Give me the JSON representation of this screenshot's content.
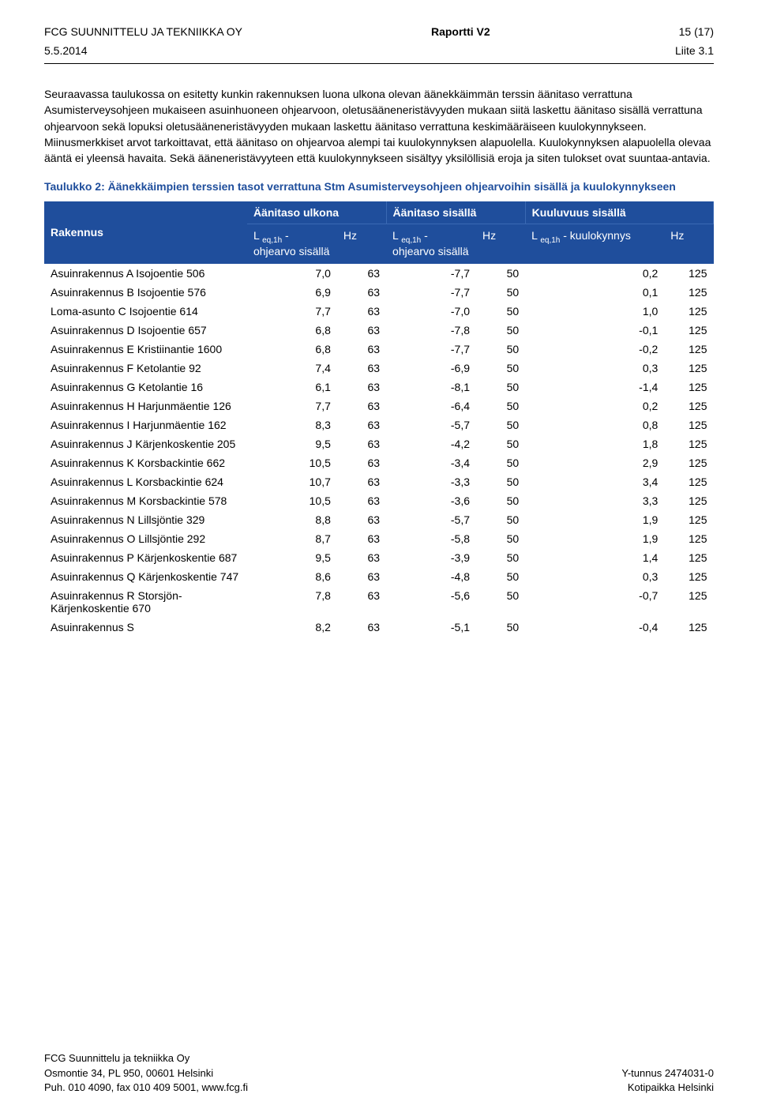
{
  "header": {
    "company": "FCG SUUNNITTELU JA TEKNIIKKA OY",
    "title": "Raportti V2",
    "page": "15 (17)",
    "date": "5.5.2014",
    "attachment": "Liite 3.1"
  },
  "body": {
    "para1": "Seuraavassa taulukossa on esitetty kunkin rakennuksen luona ulkona olevan äänekkäimmän terssin äänitaso verrattuna Asumisterveysohjeen mukaiseen asuinhuoneen ohjearvoon, oletusääneneristävyyden mukaan siitä laskettu äänitaso sisällä verrattuna ohjearvoon sekä lopuksi oletusääneneristävyyden mukaan laskettu äänitaso verrattuna keskimääräiseen kuulokynnykseen. Miinusmerkkiset arvot tarkoittavat, että äänitaso on ohjearvoa alempi tai kuulokynnyksen alapuolella. Kuulokynnyksen alapuolella olevaa ääntä ei yleensä havaita. Sekä ääneneristävyyteen että kuulokynnykseen sisältyy yksilöllisiä eroja ja siten tulokset ovat suuntaa-antavia.",
    "caption": "Taulukko 2: Äänekkäimpien terssien tasot verrattuna Stm Asumisterveysohjeen ohjearvoihin sisällä ja kuulokynnykseen"
  },
  "table": {
    "col_rakennus": "Rakennus",
    "group_ulkona": "Äänitaso ulkona",
    "group_sisalla": "Äänitaso sisällä",
    "group_kuuluvuus": "Kuuluvuus sisällä",
    "sub_l1a": "L",
    "sub_eq": "eq,1h",
    "sub_l1b": " - ohjearvo sisällä",
    "sub_hz": "Hz",
    "sub_l3b": " - kuulokynnys",
    "rows": [
      {
        "name": "Asuinrakennus A Isojoentie 506",
        "u": "7,0",
        "uhz": "63",
        "s": "-7,7",
        "shz": "50",
        "k": "0,2",
        "khz": "125"
      },
      {
        "name": "Asuinrakennus B Isojoentie 576",
        "u": "6,9",
        "uhz": "63",
        "s": "-7,7",
        "shz": "50",
        "k": "0,1",
        "khz": "125"
      },
      {
        "name": "Loma-asunto C Isojoentie 614",
        "u": "7,7",
        "uhz": "63",
        "s": "-7,0",
        "shz": "50",
        "k": "1,0",
        "khz": "125"
      },
      {
        "name": "Asuinrakennus D Isojoentie 657",
        "u": "6,8",
        "uhz": "63",
        "s": "-7,8",
        "shz": "50",
        "k": "-0,1",
        "khz": "125"
      },
      {
        "name": "Asuinrakennus E Kristiinantie 1600",
        "u": "6,8",
        "uhz": "63",
        "s": "-7,7",
        "shz": "50",
        "k": "-0,2",
        "khz": "125"
      },
      {
        "name": "Asuinrakennus F Ketolantie 92",
        "u": "7,4",
        "uhz": "63",
        "s": "-6,9",
        "shz": "50",
        "k": "0,3",
        "khz": "125"
      },
      {
        "name": "Asuinrakennus G Ketolantie 16",
        "u": "6,1",
        "uhz": "63",
        "s": "-8,1",
        "shz": "50",
        "k": "-1,4",
        "khz": "125"
      },
      {
        "name": "Asuinrakennus H Harjunmäentie 126",
        "u": "7,7",
        "uhz": "63",
        "s": "-6,4",
        "shz": "50",
        "k": "0,2",
        "khz": "125"
      },
      {
        "name": "Asuinrakennus I Harjunmäentie 162",
        "u": "8,3",
        "uhz": "63",
        "s": "-5,7",
        "shz": "50",
        "k": "0,8",
        "khz": "125"
      },
      {
        "name": "Asuinrakennus J Kärjenkoskentie 205",
        "u": "9,5",
        "uhz": "63",
        "s": "-4,2",
        "shz": "50",
        "k": "1,8",
        "khz": "125"
      },
      {
        "name": "Asuinrakennus K Korsbackintie 662",
        "u": "10,5",
        "uhz": "63",
        "s": "-3,4",
        "shz": "50",
        "k": "2,9",
        "khz": "125"
      },
      {
        "name": "Asuinrakennus L Korsbackintie 624",
        "u": "10,7",
        "uhz": "63",
        "s": "-3,3",
        "shz": "50",
        "k": "3,4",
        "khz": "125"
      },
      {
        "name": "Asuinrakennus M Korsbackintie 578",
        "u": "10,5",
        "uhz": "63",
        "s": "-3,6",
        "shz": "50",
        "k": "3,3",
        "khz": "125"
      },
      {
        "name": "Asuinrakennus N Lillsjöntie 329",
        "u": "8,8",
        "uhz": "63",
        "s": "-5,7",
        "shz": "50",
        "k": "1,9",
        "khz": "125"
      },
      {
        "name": "Asuinrakennus O Lillsjöntie 292",
        "u": "8,7",
        "uhz": "63",
        "s": "-5,8",
        "shz": "50",
        "k": "1,9",
        "khz": "125"
      },
      {
        "name": "Asuinrakennus P Kärjenkoskentie 687",
        "u": "9,5",
        "uhz": "63",
        "s": "-3,9",
        "shz": "50",
        "k": "1,4",
        "khz": "125"
      },
      {
        "name": "Asuinrakennus Q Kärjenkoskentie 747",
        "u": "8,6",
        "uhz": "63",
        "s": "-4,8",
        "shz": "50",
        "k": "0,3",
        "khz": "125"
      },
      {
        "name": "Asuinrakennus R Storsjön-Kärjenkoskentie 670",
        "u": "7,8",
        "uhz": "63",
        "s": "-5,6",
        "shz": "50",
        "k": "-0,7",
        "khz": "125"
      },
      {
        "name": "Asuinrakennus S",
        "u": "8,2",
        "uhz": "63",
        "s": "-5,1",
        "shz": "50",
        "k": "-0,4",
        "khz": "125"
      }
    ]
  },
  "footer": {
    "l1": "FCG Suunnittelu ja tekniikka Oy",
    "l2": "Osmontie 34, PL 950, 00601 Helsinki",
    "l3": "Puh. 010 4090, fax 010 409 5001, www.fcg.fi",
    "r1": "Y-tunnus 2474031-0",
    "r2": "Kotipaikka Helsinki"
  }
}
